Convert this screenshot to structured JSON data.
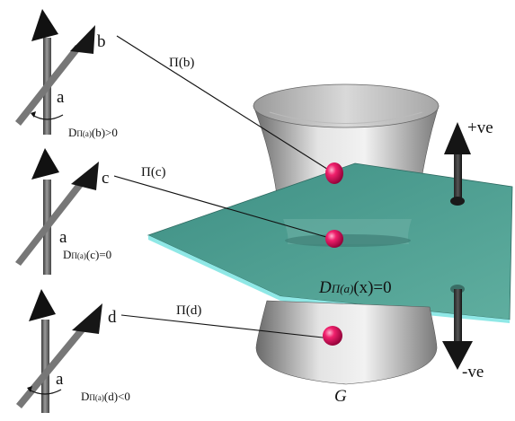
{
  "labels": {
    "b": "b",
    "c": "c",
    "d": "d",
    "a_top": "a",
    "a_mid": "a",
    "a_bot": "a",
    "proj_b": "Π(b)",
    "proj_c": "Π(c)",
    "proj_d": "Π(d)",
    "cond_b_prefix": "D",
    "cond_b_sub": "Π(a)",
    "cond_b_suffix": "(b)>0",
    "cond_c_prefix": "D",
    "cond_c_sub": "Π(a)",
    "cond_c_suffix": "(c)=0",
    "cond_d_prefix": "D",
    "cond_d_sub": "Π(a)",
    "cond_d_suffix": "(d)<0",
    "plane_prefix": "D",
    "plane_sub": "Π(a)",
    "plane_suffix": "(x)=0",
    "pos_ve": "+ve",
    "neg_ve": "-ve",
    "surface": "G"
  },
  "colors": {
    "plane": "#4f9c8f",
    "plane_edge": "#8fe8e6",
    "point": "#e0125e",
    "arrow": "#141414",
    "rod": "#6e6e6e",
    "surface": "#c8c8c8"
  }
}
